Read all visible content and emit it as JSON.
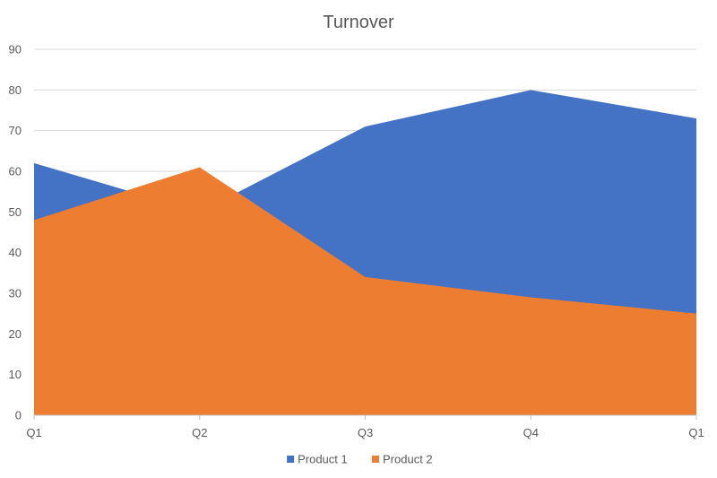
{
  "chart_data": {
    "type": "area",
    "title": "Turnover",
    "xlabel": "",
    "ylabel": "",
    "categories": [
      "Q1",
      "Q2",
      "Q3",
      "Q4",
      "Q1"
    ],
    "ylim": [
      0,
      90
    ],
    "yticks": [
      0,
      10,
      20,
      30,
      40,
      50,
      60,
      70,
      80,
      90
    ],
    "grid": true,
    "legend_position": "bottom",
    "series": [
      {
        "name": "Product 1",
        "values": [
          62,
          50,
          71,
          80,
          73
        ],
        "color": "#4472C4"
      },
      {
        "name": "Product 2",
        "values": [
          48,
          61,
          34,
          29,
          25
        ],
        "color": "#ED7D31"
      }
    ]
  }
}
